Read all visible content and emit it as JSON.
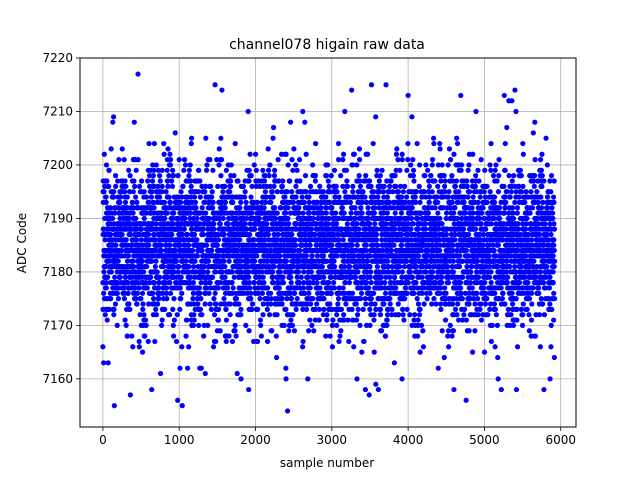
{
  "chart_data": {
    "type": "scatter",
    "title": "channel078 higain raw data",
    "xlabel": "sample number",
    "ylabel": "ADC Code",
    "xlim": [
      -300,
      6200
    ],
    "ylim": [
      7151,
      7220
    ],
    "xticks": [
      0,
      1000,
      2000,
      3000,
      4000,
      5000,
      6000
    ],
    "yticks": [
      7160,
      7170,
      7180,
      7190,
      7200,
      7210,
      7220
    ],
    "grid": true,
    "legend": "none",
    "marker_color": "#0000ff",
    "marker": "circle",
    "series": [
      {
        "n_points": 5921,
        "x_range": [
          0,
          5920
        ],
        "y_center": 7185,
        "y_dense_band": [
          7173,
          7197
        ],
        "outliers": [
          [
            0,
            7166
          ],
          [
            10,
            7163
          ],
          [
            70,
            7163
          ],
          [
            150,
            7155
          ],
          [
            130,
            7208
          ],
          [
            140,
            7209
          ],
          [
            360,
            7157
          ],
          [
            460,
            7217
          ],
          [
            520,
            7165
          ],
          [
            640,
            7158
          ],
          [
            980,
            7156
          ],
          [
            1040,
            7155
          ],
          [
            1010,
            7162
          ],
          [
            1110,
            7162
          ],
          [
            1270,
            7162
          ],
          [
            1290,
            7162
          ],
          [
            1470,
            7215
          ],
          [
            1560,
            7214
          ],
          [
            1760,
            7161
          ],
          [
            1810,
            7160
          ],
          [
            1910,
            7158
          ],
          [
            2400,
            7160
          ],
          [
            2420,
            7154
          ],
          [
            2460,
            7208
          ],
          [
            2620,
            7210
          ],
          [
            3170,
            7210
          ],
          [
            3260,
            7214
          ],
          [
            3330,
            7160
          ],
          [
            3440,
            7158
          ],
          [
            3490,
            7157
          ],
          [
            3520,
            7215
          ],
          [
            3610,
            7158
          ],
          [
            3710,
            7215
          ],
          [
            3920,
            7160
          ],
          [
            4000,
            7213
          ],
          [
            4050,
            7209
          ],
          [
            4600,
            7158
          ],
          [
            4690,
            7213
          ],
          [
            4760,
            7156
          ],
          [
            5180,
            7160
          ],
          [
            5260,
            7213
          ],
          [
            5320,
            7212
          ],
          [
            5360,
            7212
          ],
          [
            5400,
            7214
          ],
          [
            5420,
            7158
          ],
          [
            5660,
            7208
          ],
          [
            5780,
            7158
          ],
          [
            5860,
            7160
          ]
        ]
      }
    ]
  }
}
